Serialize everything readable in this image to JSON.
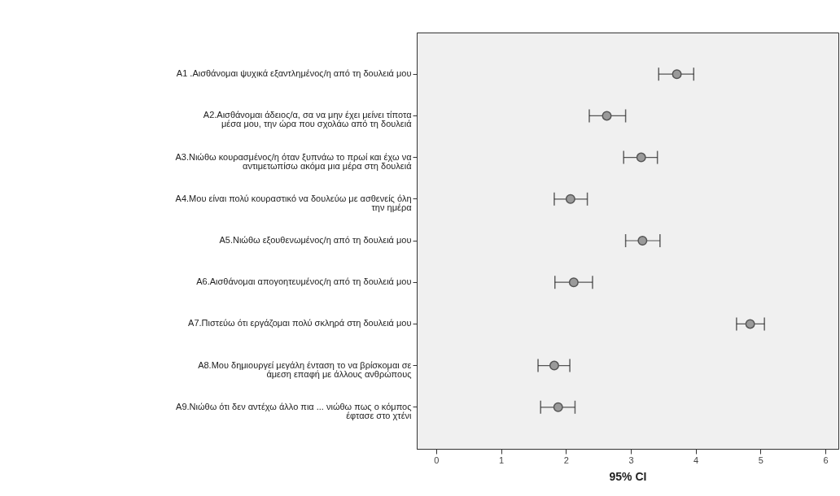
{
  "chart_data": {
    "type": "scatter",
    "orientation": "horizontal",
    "xlabel": "95% CI",
    "marker": "circle",
    "grid": false,
    "categories": [
      "A1 .Αισθάνομαι ψυχικά εξαντλημένος/η από τη δουλειά μου",
      "A2.Αισθάνομαι άδειος/α, σα να μην έχει μείνει τίποτα μέσα μου, την ώρα που σχολάω από τη δουλειά",
      "A3.Νιώθω κουρασμένος/η όταν ξυπνάω το πρωί και έχω να αντιμετωπίσω ακόμα μια μέρα στη δουλειά",
      "A4.Μου είναι πολύ κουραστικό να δουλεύω με ασθενείς όλη την ημέρα",
      "A5.Νιώθω εξουθενωμένος/η από τη δουλειά μου",
      "A6.Αισθάνομαι απογοητευμένος/η από τη δουλειά μου",
      "A7.Πιστεύω ότι εργάζομαι πολύ σκληρά στη δουλειά μου",
      "A8.Μου δημιουργεί μεγάλη ένταση το να βρίσκομαι σε άμεση επαφή με άλλους ανθρώπους",
      "A9.Νιώθω ότι δεν αντέχω άλλο πια ... νιώθω πως ο κόμπος έφτασε στο χτένι"
    ],
    "values": [
      3.71,
      2.63,
      3.16,
      2.07,
      3.18,
      2.12,
      4.84,
      1.82,
      1.88
    ],
    "errors": [
      [
        3.43,
        3.97
      ],
      [
        2.36,
        2.92
      ],
      [
        2.89,
        3.41
      ],
      [
        1.82,
        2.33
      ],
      [
        2.92,
        3.45
      ],
      [
        1.83,
        2.41
      ],
      [
        4.63,
        5.06
      ],
      [
        1.57,
        2.06
      ],
      [
        1.61,
        2.14
      ]
    ],
    "color": "#555555",
    "xlim": [
      -0.3,
      6.2
    ],
    "xticks": [
      0,
      1,
      2,
      3,
      4,
      5,
      6
    ]
  }
}
